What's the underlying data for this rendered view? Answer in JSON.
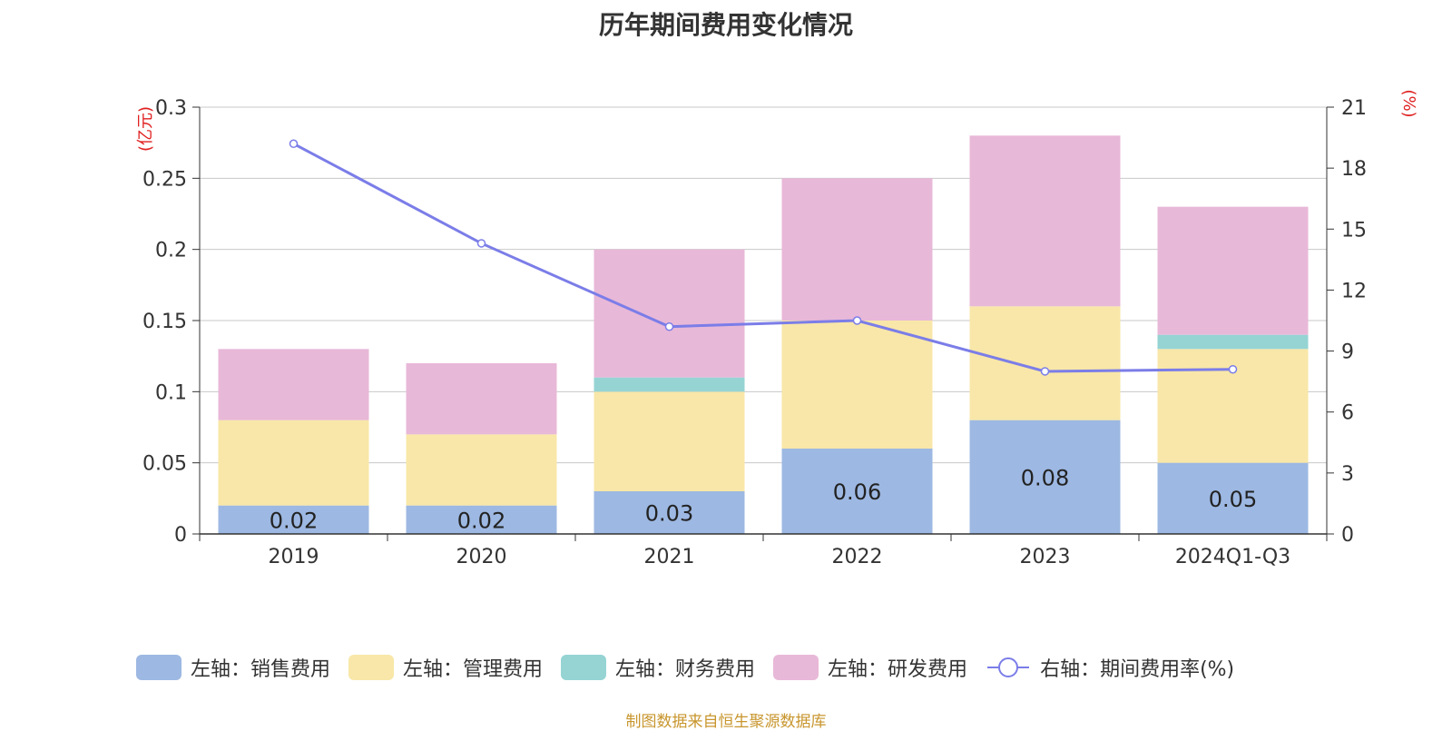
{
  "chart_data": {
    "type": "bar",
    "title": "历年期间费用变化情况",
    "categories": [
      "2019",
      "2020",
      "2021",
      "2022",
      "2023",
      "2024Q1-Q3"
    ],
    "left_axis": {
      "unit": "(亿元)",
      "ylim": [
        0,
        0.3
      ],
      "ticks": [
        "0",
        "0.05",
        "0.1",
        "0.15",
        "0.2",
        "0.25",
        "0.3"
      ]
    },
    "right_axis": {
      "unit": "(%)",
      "ylim": [
        0,
        21
      ],
      "ticks": [
        "0",
        "3",
        "6",
        "9",
        "12",
        "15",
        "18",
        "21"
      ]
    },
    "series": [
      {
        "name": "左轴：销售费用",
        "type": "bar",
        "axis": "left",
        "stack": true,
        "color": "#9db8e2",
        "values": [
          0.02,
          0.02,
          0.03,
          0.06,
          0.08,
          0.05
        ],
        "labels": [
          "0.02",
          "0.02",
          "0.03",
          "0.06",
          "0.08",
          "0.05"
        ]
      },
      {
        "name": "左轴：管理费用",
        "type": "bar",
        "axis": "left",
        "stack": true,
        "color": "#f8e7a8",
        "values": [
          0.06,
          0.05,
          0.07,
          0.09,
          0.08,
          0.08
        ]
      },
      {
        "name": "左轴：财务费用",
        "type": "bar",
        "axis": "left",
        "stack": true,
        "color": "#96d4d4",
        "values": [
          0,
          0,
          0.01,
          0,
          0,
          0.01
        ]
      },
      {
        "name": "左轴：研发费用",
        "type": "bar",
        "axis": "left",
        "stack": true,
        "color": "#e8b8d8",
        "values": [
          0.05,
          0.05,
          0.09,
          0.1,
          0.12,
          0.09
        ]
      },
      {
        "name": "右轴：期间费用率(%)",
        "type": "line",
        "axis": "right",
        "color": "#7b7de8",
        "values": [
          19.2,
          14.3,
          10.2,
          10.5,
          8.0,
          8.1
        ]
      }
    ],
    "grid": true,
    "legend_position": "bottom"
  },
  "source": "制图数据来自恒生聚源数据库"
}
